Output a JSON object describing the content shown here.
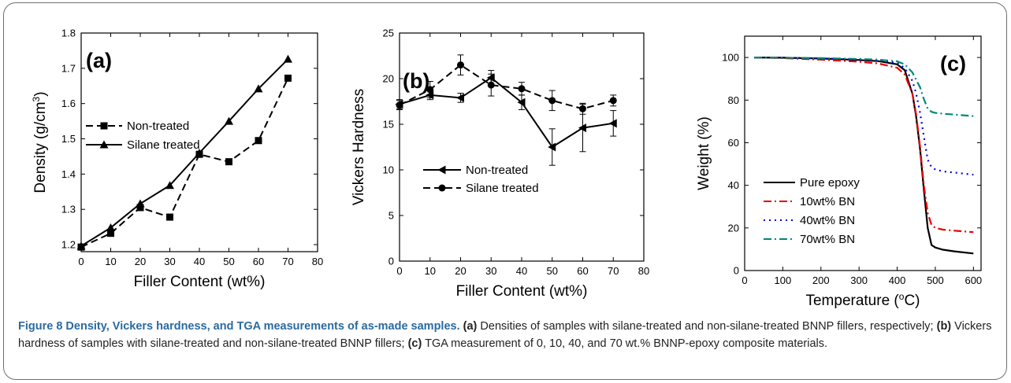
{
  "caption": {
    "lead": "Figure 8 Density, Vickers hardness, and TGA measurements of as-made samples.",
    "a_marker": "(a)",
    "a_text": " Densities of samples with silane-treated and non-silane-treated BNNP fillers, respectively; ",
    "b_marker": "(b)",
    "b_text": " Vickers hardness of samples with silane-treated and non-silane-treated BNNP fillers; ",
    "c_marker": "(c)",
    "c_text": " TGA measurement of 0, 10, 40, and 70 wt.% BNNP-epoxy composite materials."
  },
  "chart_data": [
    {
      "id": "a",
      "type": "line",
      "panel_label": "(a)",
      "xlabel": "Filler Content (wt%)",
      "ylabel": "Density (g/cm",
      "ylabel_sup": "3",
      "ylabel_end": ")",
      "xlim": [
        0,
        80
      ],
      "ylim": [
        1.18,
        1.8
      ],
      "xticks": [
        0,
        10,
        20,
        30,
        40,
        50,
        60,
        70,
        80
      ],
      "yticks": [
        "1.2",
        "1.3",
        "1.4",
        "1.5",
        "1.6",
        "1.7",
        "1.8"
      ],
      "legend_position": "middle-left",
      "series": [
        {
          "name": "Non-treated",
          "line": "dashed",
          "marker": "square",
          "color": "#000000",
          "x": [
            0,
            10,
            20,
            30,
            40,
            50,
            60,
            70
          ],
          "y": [
            1.193,
            1.232,
            1.305,
            1.278,
            1.456,
            1.435,
            1.495,
            1.672
          ]
        },
        {
          "name": "Silane treated",
          "line": "solid",
          "marker": "triangle-up",
          "color": "#000000",
          "x": [
            0,
            10,
            20,
            30,
            40,
            50,
            60,
            70
          ],
          "y": [
            1.196,
            1.248,
            1.316,
            1.368,
            1.46,
            1.55,
            1.642,
            1.726
          ]
        }
      ]
    },
    {
      "id": "b",
      "type": "line",
      "panel_label": "(b)",
      "xlabel": "Filler Content (wt%)",
      "ylabel": "Vickers Hardness",
      "xlim": [
        0,
        80
      ],
      "ylim": [
        0,
        25
      ],
      "xticks": [
        0,
        10,
        20,
        30,
        40,
        50,
        60,
        70,
        80
      ],
      "yticks": [
        "0",
        "5",
        "10",
        "15",
        "20",
        "25"
      ],
      "legend_position": "lower-left",
      "series": [
        {
          "name": "Non-treated",
          "line": "solid",
          "marker": "triangle-left",
          "color": "#000000",
          "x": [
            0,
            10,
            20,
            30,
            40,
            50,
            60,
            70
          ],
          "y": [
            17.2,
            18.2,
            17.9,
            20.1,
            17.4,
            12.5,
            14.6,
            15.1
          ],
          "err": [
            0.5,
            0.5,
            0.5,
            0.8,
            0.8,
            2.0,
            2.6,
            1.4
          ]
        },
        {
          "name": "Silane treated",
          "line": "dashed",
          "marker": "circle",
          "color": "#000000",
          "x": [
            0,
            10,
            20,
            30,
            40,
            50,
            60,
            70
          ],
          "y": [
            17.1,
            18.8,
            21.5,
            19.3,
            18.9,
            17.6,
            16.7,
            17.6
          ],
          "err": [
            0.5,
            0.9,
            1.1,
            1.2,
            0.7,
            1.1,
            0.6,
            0.6
          ]
        }
      ]
    },
    {
      "id": "c",
      "type": "line",
      "panel_label": "(c)",
      "xlabel": "Temperature (",
      "xlabel_sup": "o",
      "xlabel_end": "C)",
      "ylabel": "Weight (%)",
      "xlim": [
        0,
        620
      ],
      "ylim": [
        0,
        110
      ],
      "xticks": [
        0,
        100,
        200,
        300,
        400,
        500,
        600
      ],
      "yticks": [
        "0",
        "20",
        "40",
        "60",
        "80",
        "100"
      ],
      "legend_position": "lower-left",
      "series": [
        {
          "name": "Pure epoxy",
          "line": "solid",
          "color": "#000000",
          "x": [
            25,
            100,
            200,
            300,
            350,
            400,
            420,
            440,
            450,
            460,
            470,
            480,
            490,
            500,
            520,
            550,
            600
          ],
          "y": [
            100,
            99.9,
            99.5,
            98.8,
            98.3,
            96.8,
            94,
            83,
            72,
            57,
            38,
            20,
            12,
            10.8,
            9.8,
            9,
            8
          ]
        },
        {
          "name": "10wt% BN",
          "line": "dashdot",
          "color": "#e60000",
          "x": [
            25,
            100,
            200,
            300,
            350,
            400,
            420,
            440,
            450,
            460,
            470,
            480,
            490,
            500,
            520,
            550,
            600
          ],
          "y": [
            100,
            99.7,
            99,
            98,
            97.2,
            95.2,
            92,
            83,
            73,
            58,
            40,
            27,
            21.5,
            20,
            19.2,
            18.7,
            18
          ]
        },
        {
          "name": "40wt% BN",
          "line": "dotted",
          "color": "#0000dd",
          "x": [
            25,
            100,
            200,
            300,
            350,
            400,
            420,
            440,
            450,
            460,
            470,
            480,
            490,
            500,
            520,
            550,
            600
          ],
          "y": [
            100,
            99.9,
            99.6,
            99,
            98.6,
            97.5,
            95,
            89,
            83,
            74,
            63,
            52,
            48.5,
            47.5,
            46.5,
            46,
            45
          ]
        },
        {
          "name": "70wt% BN",
          "line": "dashdot",
          "color": "#008877",
          "x": [
            25,
            100,
            200,
            300,
            350,
            400,
            420,
            440,
            450,
            460,
            470,
            480,
            490,
            500,
            520,
            550,
            600
          ],
          "y": [
            100,
            99.9,
            99.7,
            99.3,
            99,
            98.2,
            96.8,
            93,
            89.5,
            86,
            80.5,
            76,
            74.5,
            74,
            73.6,
            73.2,
            72.5
          ]
        }
      ]
    }
  ]
}
